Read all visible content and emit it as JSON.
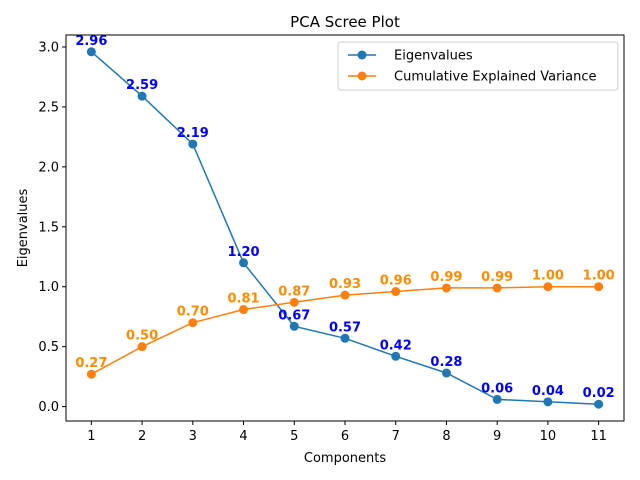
{
  "chart_data": {
    "type": "line",
    "title": "PCA Scree Plot",
    "xlabel": "Components",
    "ylabel": "Eigenvalues",
    "x": [
      1,
      2,
      3,
      4,
      5,
      6,
      7,
      8,
      9,
      10,
      11
    ],
    "xlim": [
      0.5,
      11.5
    ],
    "ylim": [
      -0.12,
      3.1
    ],
    "yticks": [
      0.0,
      0.5,
      1.0,
      1.5,
      2.0,
      2.5,
      3.0
    ],
    "yticks_labels": [
      "0.0",
      "0.5",
      "1.0",
      "1.5",
      "2.0",
      "2.5",
      "3.0"
    ],
    "xticks_labels": [
      "1",
      "2",
      "3",
      "4",
      "5",
      "6",
      "7",
      "8",
      "9",
      "10",
      "11"
    ],
    "grid": false,
    "legend_position": "top-right",
    "series": [
      {
        "name": "Eigenvalues",
        "color": "#1f77b4",
        "label_color": "#0000ff",
        "values": [
          2.96,
          2.59,
          2.19,
          1.2,
          0.67,
          0.57,
          0.42,
          0.28,
          0.06,
          0.04,
          0.02
        ],
        "labels": [
          "2.96",
          "2.59",
          "2.19",
          "1.20",
          "0.67",
          "0.57",
          "0.42",
          "0.28",
          "0.06",
          "0.04",
          "0.02"
        ]
      },
      {
        "name": "Cumulative Explained Variance",
        "color": "#ff7f0e",
        "label_color": "#ff8c00",
        "values": [
          0.27,
          0.5,
          0.7,
          0.81,
          0.87,
          0.93,
          0.96,
          0.99,
          0.99,
          1.0,
          1.0
        ],
        "labels": [
          "0.27",
          "0.50",
          "0.70",
          "0.81",
          "0.87",
          "0.93",
          "0.96",
          "0.99",
          "0.99",
          "1.00",
          "1.00"
        ]
      }
    ]
  }
}
